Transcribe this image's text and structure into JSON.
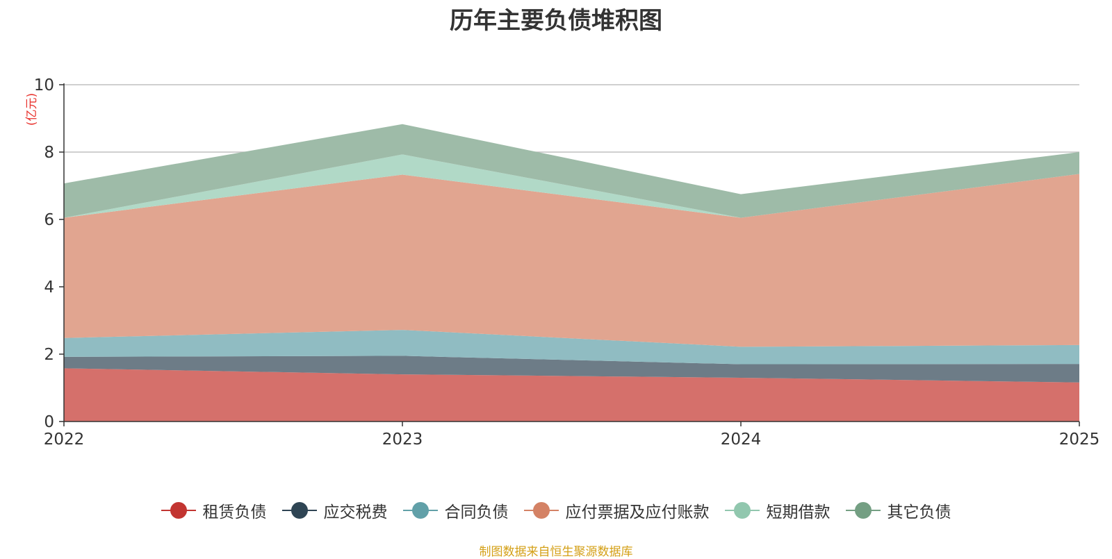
{
  "chart_data": {
    "type": "area",
    "stacked": true,
    "title": "历年主要负债堆积图",
    "ylabel": "(亿元)",
    "xlabel": "",
    "x": [
      "2022",
      "2023",
      "2024",
      "2025"
    ],
    "ylim": [
      0,
      10
    ],
    "yticks": [
      "0",
      "2",
      "4",
      "6",
      "8",
      "10"
    ],
    "grid": true,
    "legend_position": "bottom",
    "series": [
      {
        "name": "租赁负债",
        "values": [
          1.58,
          1.4,
          1.3,
          1.16
        ],
        "color": "#c23531",
        "fill": "#d5706b"
      },
      {
        "name": "应交税费",
        "values": [
          0.34,
          0.55,
          0.4,
          0.55
        ],
        "color": "#2f4554",
        "fill": "#6d7c87"
      },
      {
        "name": "合同负债",
        "values": [
          0.56,
          0.77,
          0.52,
          0.56
        ],
        "color": "#61a0a8",
        "fill": "#90bcc2"
      },
      {
        "name": "应付票据及应付账款",
        "values": [
          3.57,
          4.61,
          3.83,
          5.08
        ],
        "color": "#d48265",
        "fill": "#e1a590"
      },
      {
        "name": "短期借款",
        "values": [
          0.0,
          0.6,
          0.0,
          0.0
        ],
        "color": "#91c7ae",
        "fill": "#b1d9c7"
      },
      {
        "name": "其它负债",
        "values": [
          1.02,
          0.9,
          0.7,
          0.65
        ],
        "color": "#749f83",
        "fill": "#9ebba8"
      }
    ]
  },
  "source_note": "制图数据来自恒生聚源数据库"
}
